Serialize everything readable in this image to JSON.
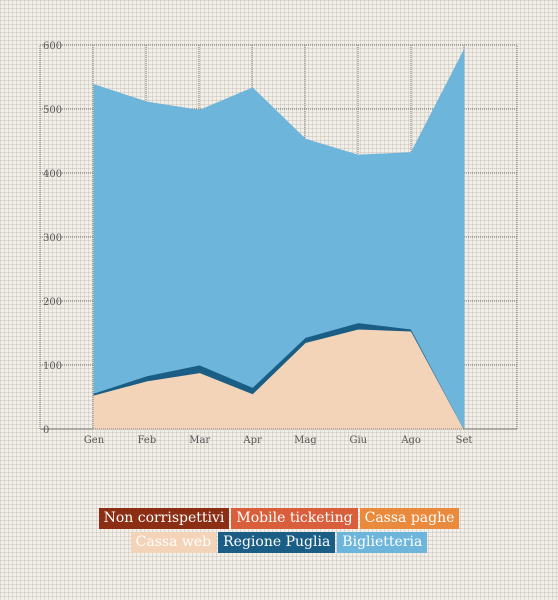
{
  "chart_data": {
    "type": "area",
    "stacked": true,
    "categories": [
      "Gen",
      "Feb",
      "Mar",
      "Apr",
      "Mag",
      "Giu",
      "Ago",
      "Set"
    ],
    "ylim": [
      0,
      600
    ],
    "yticks": [
      "0",
      "100",
      "200",
      "300",
      "400",
      "500",
      "600"
    ],
    "grid": true,
    "legend_position": "bottom",
    "series": [
      {
        "name": "Non corrispettivi",
        "color": "#8b2e13",
        "values": [
          0,
          0,
          0,
          0,
          0,
          0,
          0,
          0
        ]
      },
      {
        "name": "Mobile ticketing",
        "color": "#d95f3c",
        "values": [
          0,
          0,
          0,
          0,
          0,
          0,
          0,
          0
        ]
      },
      {
        "name": "Cassa paghe",
        "color": "#e98a3c",
        "values": [
          0,
          0,
          0,
          0,
          0,
          0,
          0,
          0
        ]
      },
      {
        "name": "Cassa web",
        "color": "#f4d4b8",
        "values": [
          53,
          75,
          88,
          55,
          135,
          156,
          153,
          0
        ]
      },
      {
        "name": "Regione Puglia",
        "color": "#1a5e86",
        "values": [
          3,
          8,
          12,
          10,
          8,
          10,
          3,
          0
        ]
      },
      {
        "name": "Biglietteria",
        "color": "#6db5db",
        "values": [
          482,
          428,
          398,
          468,
          310,
          262,
          276,
          592
        ]
      }
    ]
  }
}
